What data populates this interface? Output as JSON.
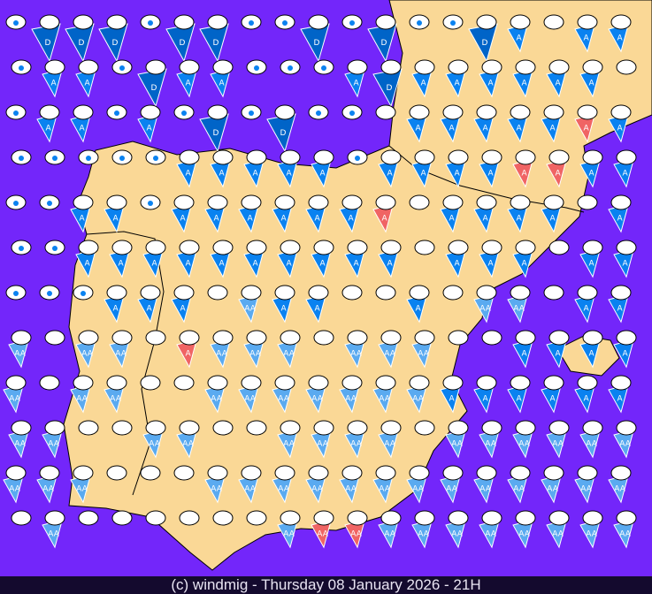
{
  "footer": {
    "text": "(c) windmig - Thursday 08 January 2026 - 21H"
  },
  "colors": {
    "sea": "#7326fa",
    "land": "#fad896",
    "dark_blue": "#0064c8",
    "blue": "#0a82f0",
    "light_blue": "#5aaaf0",
    "red": "#f06464",
    "oval": "#ffffff"
  },
  "marker_labels": {
    "D": "D",
    "A": "A",
    "B": "AA",
    "R": "A",
    "S": "AA"
  },
  "legend_icons": {
    "r": "rain-drop-icon",
    ".": "plain-oval"
  },
  "rows": [
    "rDDDrDDrrDrDrrDA.AA",
    "rAArDAArrrADAAAAAA.",
    "rAArArDrDrr.AAAAARA",
    "rrrrrAAAAArAAAARRAA",
    "rrAArAAAAAAR.AAAA.A",
    "rrAAAAAAAAAA.AAA.AA",
    "rrrAAA.BAA..A.BB.AA",
    "B.BB.RBBB.BBB..AAAA",
    "B.BB..BBBBBBBAAAAAA",
    "BB..BB..BBBB.BBBBBB",
    "BBB...BBBBBBBBBBBBB",
    ".B......BSSBBBBBBBB"
  ]
}
